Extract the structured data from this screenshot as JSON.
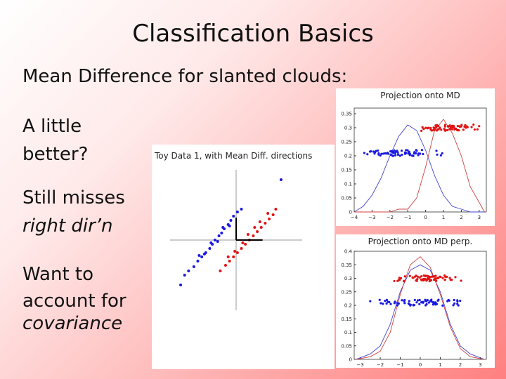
{
  "slide": {
    "title": "Classification Basics",
    "subtitle": "Mean Difference for slanted clouds:",
    "bullets": [
      {
        "line1": "A little",
        "line2": "better?"
      },
      {
        "line1": "Still misses",
        "line2": "right dir’n"
      },
      {
        "line1": "Want to",
        "line2": "account for",
        "line3": "covariance"
      }
    ]
  },
  "chart_data": [
    {
      "type": "scatter",
      "title": "Toy Data 1, with Mean Diff. directions",
      "series": [
        {
          "name": "",
          "color": "#1a1adf",
          "points": [
            [
              -3.6,
              -2.2
            ],
            [
              -3.2,
              -1.9
            ],
            [
              -2.9,
              -1.5
            ],
            [
              -2.6,
              -1.2
            ],
            [
              -2.3,
              -0.9
            ],
            [
              -2.0,
              -0.6
            ],
            [
              -1.8,
              -0.3
            ],
            [
              -1.6,
              0.0
            ],
            [
              -1.3,
              0.3
            ],
            [
              -1.1,
              0.5
            ],
            [
              -0.9,
              0.8
            ],
            [
              -0.6,
              1.1
            ],
            [
              -0.4,
              1.4
            ],
            [
              -0.2,
              1.7
            ],
            [
              0.1,
              2.0
            ],
            [
              -2.8,
              -1.1
            ],
            [
              -2.4,
              -1.0
            ],
            [
              -1.9,
              -0.2
            ],
            [
              -1.4,
              -0.1
            ],
            [
              -1.0,
              0.9
            ],
            [
              -0.5,
              1.0
            ],
            [
              0.4,
              2.2
            ],
            [
              3.4,
              4.3
            ],
            [
              -4.2,
              -3.2
            ],
            [
              -3.9,
              -2.5
            ]
          ]
        },
        {
          "name": "",
          "color": "#e01414",
          "points": [
            [
              -0.8,
              -1.8
            ],
            [
              -0.5,
              -1.5
            ],
            [
              -0.2,
              -1.2
            ],
            [
              0.1,
              -0.9
            ],
            [
              0.4,
              -0.6
            ],
            [
              0.7,
              -0.3
            ],
            [
              1.0,
              0.0
            ],
            [
              1.3,
              0.3
            ],
            [
              1.6,
              0.6
            ],
            [
              1.9,
              0.9
            ],
            [
              2.2,
              1.2
            ],
            [
              2.5,
              1.5
            ],
            [
              2.8,
              1.8
            ],
            [
              -0.6,
              -1.2
            ],
            [
              -0.1,
              -0.8
            ],
            [
              0.5,
              -0.2
            ],
            [
              0.9,
              0.4
            ],
            [
              1.4,
              0.9
            ],
            [
              1.8,
              1.3
            ],
            [
              2.4,
              1.9
            ],
            [
              -1.2,
              -2.2
            ],
            [
              3.0,
              2.2
            ]
          ]
        }
      ],
      "mean_difference_segment": [
        [
          0.0,
          0.0
        ],
        [
          2.0,
          0.0
        ]
      ],
      "xlim": [
        -5,
        5
      ],
      "ylim": [
        -5,
        5
      ]
    },
    {
      "type": "line",
      "title": "Projection onto MD",
      "x_ticks": [
        -4,
        -3,
        -2,
        -1,
        0,
        1,
        2,
        3
      ],
      "y_ticks": [
        0,
        0.05,
        0.1,
        0.15,
        0.2,
        0.25,
        0.3,
        0.35
      ],
      "xlim": [
        -4,
        3.4
      ],
      "ylim": [
        0,
        0.37
      ],
      "series": [
        {
          "name": "",
          "color": "#4040d0",
          "x": [
            -4,
            -3.5,
            -3,
            -2.5,
            -2,
            -1.5,
            -1,
            -0.5,
            0,
            0.5,
            1,
            1.5,
            2,
            2.5,
            3.3
          ],
          "y": [
            0.0,
            0.02,
            0.06,
            0.12,
            0.2,
            0.27,
            0.31,
            0.29,
            0.22,
            0.13,
            0.06,
            0.02,
            0.01,
            0.0,
            0.0
          ]
        },
        {
          "name": "",
          "color": "#d04040",
          "x": [
            -4,
            -3,
            -2,
            -1.5,
            -1,
            -0.5,
            0,
            0.5,
            1,
            1.5,
            2,
            2.5,
            3.3
          ],
          "y": [
            0.0,
            0.0,
            0.0,
            0.01,
            0.01,
            0.05,
            0.16,
            0.29,
            0.33,
            0.28,
            0.2,
            0.09,
            0.0
          ]
        }
      ],
      "jitter_rows": [
        {
          "color": "#1a1adf",
          "y": 0.21,
          "x_range": [
            -3.8,
            1.0
          ]
        },
        {
          "color": "#e01414",
          "y": 0.3,
          "x_range": [
            -0.6,
            3.3
          ]
        }
      ]
    },
    {
      "type": "line",
      "title": "Projection onto MD perp.",
      "x_ticks": [
        -3,
        -2,
        -1,
        0,
        1,
        2,
        3
      ],
      "y_ticks": [
        0,
        0.05,
        0.1,
        0.15,
        0.2,
        0.25,
        0.3,
        0.35,
        0.4
      ],
      "xlim": [
        -3.3,
        3.3
      ],
      "ylim": [
        0,
        0.4
      ],
      "series": [
        {
          "name": "",
          "color": "#4040d0",
          "x": [
            -3.2,
            -2.5,
            -2,
            -1.5,
            -1,
            -0.5,
            0,
            0.5,
            1,
            1.5,
            2,
            2.5,
            3.2
          ],
          "y": [
            0.0,
            0.02,
            0.05,
            0.13,
            0.25,
            0.33,
            0.35,
            0.33,
            0.25,
            0.13,
            0.05,
            0.02,
            0.0
          ]
        },
        {
          "name": "",
          "color": "#d04040",
          "x": [
            -3.2,
            -2.5,
            -2,
            -1.5,
            -1,
            -0.5,
            0,
            0.5,
            1,
            1.5,
            2,
            2.5,
            3.2
          ],
          "y": [
            0.0,
            0.01,
            0.03,
            0.1,
            0.24,
            0.35,
            0.38,
            0.34,
            0.24,
            0.12,
            0.04,
            0.01,
            0.0
          ]
        }
      ],
      "jitter_rows": [
        {
          "color": "#1a1adf",
          "y": 0.21,
          "x_range": [
            -3.1,
            3.2
          ]
        },
        {
          "color": "#e01414",
          "y": 0.3,
          "x_range": [
            -1.6,
            2.2
          ]
        }
      ]
    }
  ]
}
